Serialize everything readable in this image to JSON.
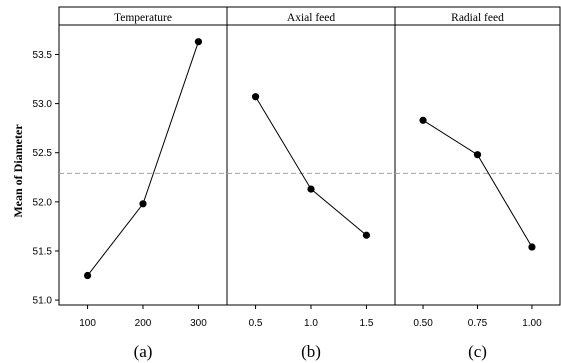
{
  "chart_data": {
    "type": "line",
    "ylabel": "Mean of Diameter",
    "ylim": [
      50.95,
      53.8
    ],
    "yticks": [
      "51.0",
      "51.5",
      "52.0",
      "52.5",
      "53.0",
      "53.5"
    ],
    "reference_line": 52.29,
    "grid": false,
    "panels": [
      {
        "title": "Temperature",
        "caption": "(a)",
        "categories": [
          "100",
          "200",
          "300"
        ],
        "values": [
          51.25,
          51.98,
          53.63
        ]
      },
      {
        "title": "Axial feed",
        "caption": "(b)",
        "categories": [
          "0.5",
          "1.0",
          "1.5"
        ],
        "values": [
          53.07,
          52.13,
          51.66
        ]
      },
      {
        "title": "Radial feed",
        "caption": "(c)",
        "categories": [
          "0.50",
          "0.75",
          "1.00"
        ],
        "values": [
          52.83,
          52.48,
          51.54
        ]
      }
    ]
  }
}
